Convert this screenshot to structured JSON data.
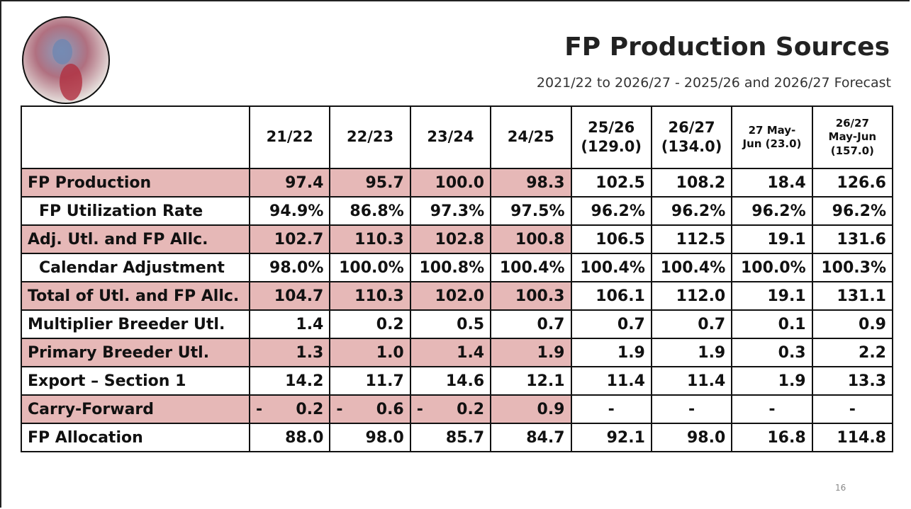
{
  "header": {
    "title": "FP Production Sources",
    "subtitle": "2021/22 to 2026/27 - 2025/26 and 2026/27 Forecast"
  },
  "table": {
    "columns": [
      "21/22",
      "22/23",
      "23/24",
      "24/25",
      "25/26\n(129.0)",
      "26/27\n(134.0)",
      "27 May-\nJun (23.0)",
      "26/27\nMay-Jun\n(157.0)"
    ],
    "rows": [
      {
        "label": "FP Production",
        "cells": [
          "97.4",
          "95.7",
          "100.0",
          "98.3",
          "102.5",
          "108.2",
          "18.4",
          "126.6"
        ]
      },
      {
        "label": "FP Utilization Rate",
        "cells": [
          "94.9%",
          "86.8%",
          "97.3%",
          "97.5%",
          "96.2%",
          "96.2%",
          "96.2%",
          "96.2%"
        ]
      },
      {
        "label": "Adj. Utl. and FP Allc.",
        "cells": [
          "102.7",
          "110.3",
          "102.8",
          "100.8",
          "106.5",
          "112.5",
          "19.1",
          "131.6"
        ]
      },
      {
        "label": "Calendar Adjustment",
        "cells": [
          "98.0%",
          "100.0%",
          "100.8%",
          "100.4%",
          "100.4%",
          "100.4%",
          "100.0%",
          "100.3%"
        ]
      },
      {
        "label": "Total of Utl. and FP Allc.",
        "cells": [
          "104.7",
          "110.3",
          "102.0",
          "100.3",
          "106.1",
          "112.0",
          "19.1",
          "131.1"
        ]
      },
      {
        "label": "Multiplier Breeder Utl.",
        "cells": [
          "1.4",
          "0.2",
          "0.5",
          "0.7",
          "0.7",
          "0.7",
          "0.1",
          "0.9"
        ]
      },
      {
        "label": "Primary Breeder Utl.",
        "cells": [
          "1.3",
          "1.0",
          "1.4",
          "1.9",
          "1.9",
          "1.9",
          "0.3",
          "2.2"
        ]
      },
      {
        "label": "Export – Section 1",
        "cells": [
          "14.2",
          "11.7",
          "14.6",
          "12.1",
          "11.4",
          "11.4",
          "1.9",
          "13.3"
        ]
      },
      {
        "label": "Carry-Forward",
        "cells": [
          {
            "sign": "-",
            "value": "0.2"
          },
          {
            "sign": "-",
            "value": "0.6"
          },
          {
            "sign": "-",
            "value": "0.2"
          },
          "0.9",
          "-",
          "-",
          "-",
          "-"
        ]
      },
      {
        "label": "FP Allocation",
        "cells": [
          "88.0",
          "98.0",
          "85.7",
          "84.7",
          "92.1",
          "98.0",
          "16.8",
          "114.8"
        ]
      }
    ]
  },
  "footer": {
    "page_number": "16"
  }
}
